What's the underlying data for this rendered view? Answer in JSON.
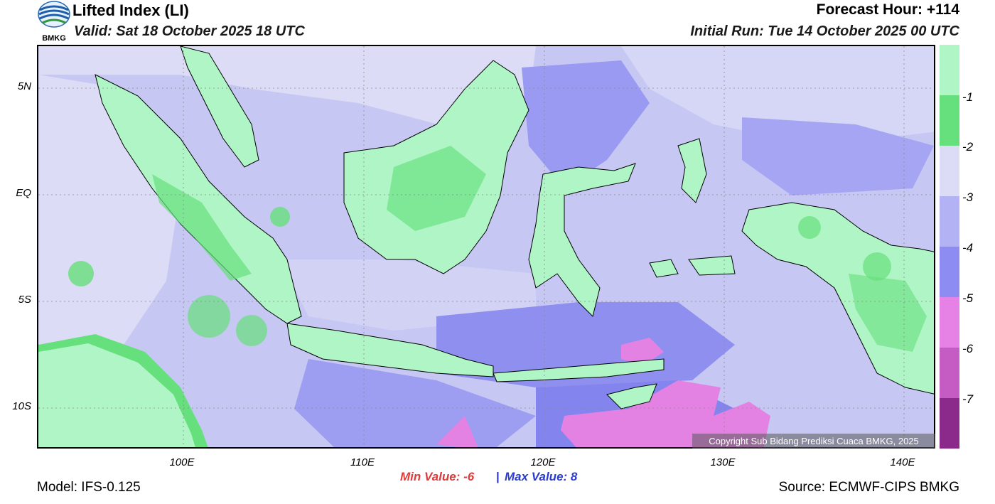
{
  "header": {
    "title": "Lifted Index (LI)",
    "valid": "Valid: Sat 18 October 2025 18 UTC",
    "forecast_hour": "Forecast Hour: +114",
    "initial_run": "Initial Run: Tue 14 October 2025 00 UTC"
  },
  "logo": {
    "text": "BMKG"
  },
  "map": {
    "lat_labels": [
      "5N",
      "EQ",
      "5S",
      "10S"
    ],
    "lon_labels": [
      "100E",
      "110E",
      "120E",
      "130E",
      "140E"
    ],
    "copyright": "Copyright Sub Bidang Prediksi Cuaca BMKG, 2025"
  },
  "legend": {
    "labels": [
      "-1",
      "-2",
      "-3",
      "-4",
      "-5",
      "-6",
      "-7"
    ],
    "colors": [
      "#b0f5c6",
      "#66e07c",
      "#dcdcf6",
      "#b2b2f4",
      "#8c8cf2",
      "#e682e6",
      "#c45cc4",
      "#8c2a8c"
    ]
  },
  "footer": {
    "min_value": "Min Value:  -6",
    "separator": "|",
    "max_value": "Max Value:   8",
    "model": "Model: IFS-0.125",
    "source": "Source: ECMWF-CIPS BMKG"
  }
}
